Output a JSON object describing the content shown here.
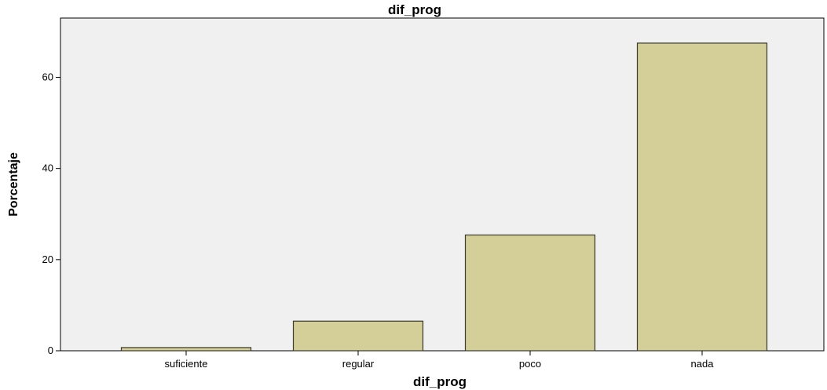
{
  "chart_data": {
    "type": "bar",
    "title": "dif_prog",
    "xlabel": "dif_prog",
    "ylabel": "Porcentaje",
    "categories": [
      "suficiente",
      "regular",
      "poco",
      "nada"
    ],
    "values": [
      0.7,
      6.5,
      25.4,
      67.5
    ],
    "ylim": [
      0,
      73
    ],
    "yticks": [
      0,
      20,
      40,
      60
    ],
    "grid": false,
    "legend": "none",
    "colors": {
      "bar_fill": "#d4cf98",
      "bar_stroke": "#3a3a2a",
      "plot_background": "#f0f0f0",
      "axis": "#000000"
    }
  }
}
